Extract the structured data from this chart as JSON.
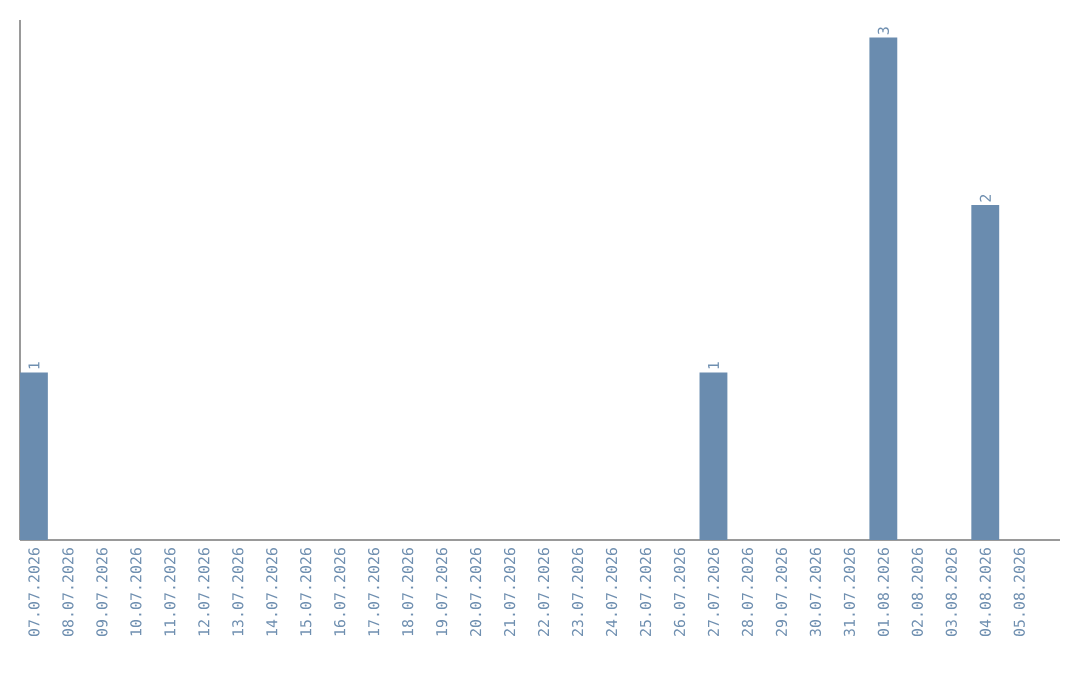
{
  "chart_data": {
    "type": "bar",
    "categories": [
      "07.07.2026",
      "08.07.2026",
      "09.07.2026",
      "10.07.2026",
      "11.07.2026",
      "12.07.2026",
      "13.07.2026",
      "14.07.2026",
      "15.07.2026",
      "16.07.2026",
      "17.07.2026",
      "18.07.2026",
      "19.07.2026",
      "20.07.2026",
      "21.07.2026",
      "22.07.2026",
      "23.07.2026",
      "24.07.2026",
      "25.07.2026",
      "26.07.2026",
      "27.07.2026",
      "28.07.2026",
      "29.07.2026",
      "30.07.2026",
      "31.07.2026",
      "01.08.2026",
      "02.08.2026",
      "03.08.2026",
      "04.08.2026",
      "05.08.2026"
    ],
    "values": [
      1,
      0,
      0,
      0,
      0,
      0,
      0,
      0,
      0,
      0,
      0,
      0,
      0,
      0,
      0,
      0,
      0,
      0,
      0,
      0,
      1,
      0,
      0,
      0,
      0,
      3,
      0,
      0,
      2,
      0
    ],
    "value_labels": [
      "1",
      null,
      null,
      null,
      null,
      null,
      null,
      null,
      null,
      null,
      null,
      null,
      null,
      null,
      null,
      null,
      null,
      null,
      null,
      null,
      "1",
      null,
      null,
      null,
      null,
      "3",
      null,
      null,
      "2",
      null
    ],
    "color": "#6a8caf",
    "tick_labels": "x"
  }
}
